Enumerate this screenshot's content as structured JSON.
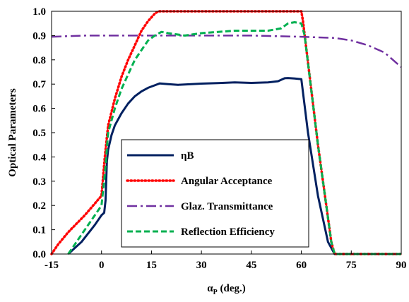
{
  "chart_data": {
    "type": "line",
    "title": "",
    "xlabel": "α",
    "xlabel_sub": "P",
    "xlabel_suffix": " (deg.)",
    "ylabel": "Optical Parameters",
    "xlim": [
      -15,
      90
    ],
    "ylim": [
      0,
      1.0
    ],
    "xticks": [
      -15,
      0,
      15,
      30,
      45,
      60,
      75,
      90
    ],
    "xtick_labels": [
      "-15",
      "0",
      "15",
      "30",
      "45",
      "60",
      "75",
      "90"
    ],
    "yticks": [
      0,
      0.1,
      0.2,
      0.3,
      0.4,
      0.5,
      0.6,
      0.7,
      0.8,
      0.9,
      1.0
    ],
    "ytick_labels": [
      "0.0",
      "0.1",
      "0.2",
      "0.3",
      "0.4",
      "0.5",
      "0.6",
      "0.7",
      "0.8",
      "0.9",
      "1.0"
    ],
    "grid": false,
    "legend_position": "center-left",
    "series": [
      {
        "name": "ηB",
        "color": "#002060",
        "style": "solid",
        "x": [
          -10,
          -6,
          -2,
          0,
          0.8,
          1.2,
          1.6,
          2,
          3,
          4,
          6,
          8,
          10,
          12,
          14,
          16,
          17.5,
          20,
          23,
          27,
          30,
          35,
          40,
          45,
          50,
          53,
          55,
          56,
          58,
          60,
          62,
          65,
          68,
          70,
          75,
          80,
          85,
          90
        ],
        "y": [
          0,
          0.05,
          0.12,
          0.16,
          0.17,
          0.22,
          0.38,
          0.43,
          0.49,
          0.53,
          0.58,
          0.62,
          0.65,
          0.67,
          0.685,
          0.695,
          0.703,
          0.7,
          0.697,
          0.7,
          0.702,
          0.704,
          0.707,
          0.705,
          0.707,
          0.712,
          0.724,
          0.725,
          0.723,
          0.72,
          0.5,
          0.24,
          0.05,
          0,
          0,
          0,
          0,
          0
        ]
      },
      {
        "name": "Angular Acceptance",
        "color": "#ff0000",
        "style": "dotted",
        "x": [
          -15,
          -13,
          -10,
          -5,
          0,
          1,
          2,
          4,
          6,
          8,
          10,
          12,
          14,
          16,
          17,
          20,
          30,
          40,
          50,
          60,
          60.5,
          65,
          69,
          70,
          75,
          80,
          85,
          90
        ],
        "y": [
          0,
          0.04,
          0.09,
          0.16,
          0.24,
          0.4,
          0.53,
          0.64,
          0.73,
          0.8,
          0.86,
          0.92,
          0.96,
          0.99,
          1.0,
          1.0,
          1.0,
          1.0,
          1.0,
          1.0,
          0.96,
          0.45,
          0.05,
          0,
          0,
          0,
          0,
          0
        ]
      },
      {
        "name": "Glaz. Transmittance",
        "color": "#7030a0",
        "style": "dashdot",
        "x": [
          -15,
          -5,
          0,
          15,
          30,
          45,
          60,
          70,
          75,
          80,
          85,
          90
        ],
        "y": [
          0.895,
          0.9,
          0.9,
          0.9,
          0.9,
          0.9,
          0.895,
          0.89,
          0.88,
          0.86,
          0.83,
          0.77
        ]
      },
      {
        "name": "Reflection Efficiency",
        "color": "#00b050",
        "style": "dashed",
        "x": [
          -10,
          -6,
          -2,
          0,
          1,
          2,
          4,
          6,
          8,
          10,
          12,
          14,
          16,
          18,
          20,
          25,
          30,
          35,
          40,
          45,
          50,
          52,
          54,
          56,
          58,
          60,
          61,
          65,
          69,
          70,
          75,
          80,
          85,
          90
        ],
        "y": [
          0,
          0.08,
          0.16,
          0.2,
          0.33,
          0.5,
          0.6,
          0.68,
          0.74,
          0.8,
          0.84,
          0.88,
          0.9,
          0.915,
          0.91,
          0.9,
          0.91,
          0.915,
          0.92,
          0.92,
          0.92,
          0.925,
          0.93,
          0.95,
          0.955,
          0.95,
          0.9,
          0.45,
          0.05,
          0,
          0,
          0,
          0,
          0
        ]
      }
    ]
  }
}
